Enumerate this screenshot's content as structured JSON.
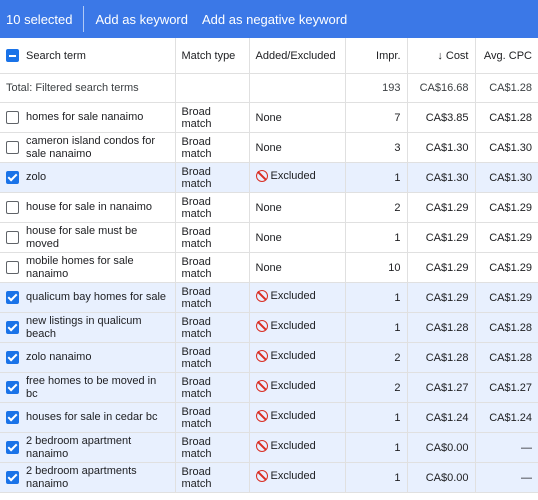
{
  "toolbar": {
    "selected_label": "10 selected",
    "add_keyword": "Add as keyword",
    "add_negative": "Add as negative keyword"
  },
  "columns": {
    "search_term": "Search term",
    "match_type": "Match type",
    "added_excluded": "Added/Excluded",
    "impr": "Impr.",
    "cost": "Cost",
    "sort_arrow": "↓",
    "avg_cpc": "Avg. CPC"
  },
  "total": {
    "label": "Total: Filtered search terms",
    "impr": "193",
    "cost": "CA$16.68",
    "avg_cpc": "CA$1.28"
  },
  "rows": [
    {
      "checked": false,
      "term": "homes for sale nanaimo",
      "match": "Broad match",
      "status": "None",
      "excluded": false,
      "impr": "7",
      "cost": "CA$3.85",
      "cpc": "CA$1.28"
    },
    {
      "checked": false,
      "term": "cameron island condos for sale nanaimo",
      "match": "Broad match",
      "status": "None",
      "excluded": false,
      "impr": "3",
      "cost": "CA$1.30",
      "cpc": "CA$1.30"
    },
    {
      "checked": true,
      "term": "zolo",
      "match": "Broad match",
      "status": "Excluded",
      "excluded": true,
      "impr": "1",
      "cost": "CA$1.30",
      "cpc": "CA$1.30"
    },
    {
      "checked": false,
      "term": "house for sale in nanaimo",
      "match": "Broad match",
      "status": "None",
      "excluded": false,
      "impr": "2",
      "cost": "CA$1.29",
      "cpc": "CA$1.29"
    },
    {
      "checked": false,
      "term": "house for sale must be moved",
      "match": "Broad match",
      "status": "None",
      "excluded": false,
      "impr": "1",
      "cost": "CA$1.29",
      "cpc": "CA$1.29"
    },
    {
      "checked": false,
      "term": "mobile homes for sale nanaimo",
      "match": "Broad match",
      "status": "None",
      "excluded": false,
      "impr": "10",
      "cost": "CA$1.29",
      "cpc": "CA$1.29"
    },
    {
      "checked": true,
      "term": "qualicum bay homes for sale",
      "match": "Broad match",
      "status": "Excluded",
      "excluded": true,
      "impr": "1",
      "cost": "CA$1.29",
      "cpc": "CA$1.29"
    },
    {
      "checked": true,
      "term": "new listings in qualicum beach",
      "match": "Broad match",
      "status": "Excluded",
      "excluded": true,
      "impr": "1",
      "cost": "CA$1.28",
      "cpc": "CA$1.28"
    },
    {
      "checked": true,
      "term": "zolo nanaimo",
      "match": "Broad match",
      "status": "Excluded",
      "excluded": true,
      "impr": "2",
      "cost": "CA$1.28",
      "cpc": "CA$1.28"
    },
    {
      "checked": true,
      "term": "free homes to be moved in bc",
      "match": "Broad match",
      "status": "Excluded",
      "excluded": true,
      "impr": "2",
      "cost": "CA$1.27",
      "cpc": "CA$1.27"
    },
    {
      "checked": true,
      "term": "houses for sale in cedar bc",
      "match": "Broad match",
      "status": "Excluded",
      "excluded": true,
      "impr": "1",
      "cost": "CA$1.24",
      "cpc": "CA$1.24"
    },
    {
      "checked": true,
      "term": "2 bedroom apartment nanaimo",
      "match": "Broad match",
      "status": "Excluded",
      "excluded": true,
      "impr": "1",
      "cost": "CA$0.00",
      "cpc": "—"
    },
    {
      "checked": true,
      "term": "2 bedroom apartments nanaimo",
      "match": "Broad match",
      "status": "Excluded",
      "excluded": true,
      "impr": "1",
      "cost": "CA$0.00",
      "cpc": "—"
    }
  ],
  "icons": {
    "excluded": "ban-icon",
    "sort": "arrow-down-icon"
  },
  "colors": {
    "toolbar_bg": "#3b78e7",
    "selected_row_bg": "#e8f0fe",
    "checkbox_on": "#1a73e8",
    "excluded_icon": "#d93025"
  }
}
